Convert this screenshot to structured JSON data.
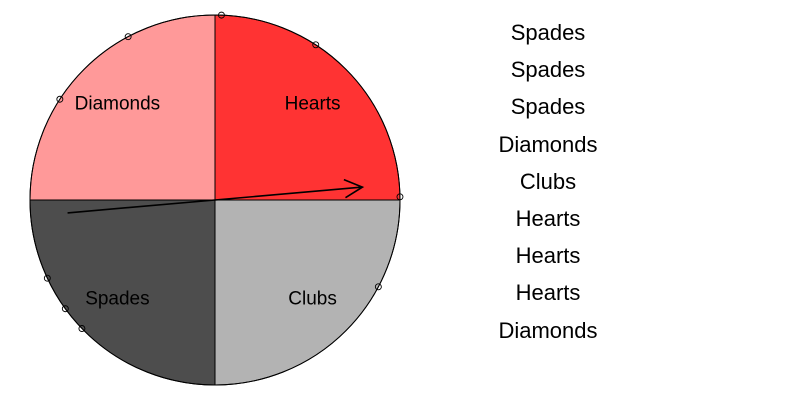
{
  "spinner": {
    "wedges": [
      {
        "label": "Hearts",
        "color": "#ff3333",
        "start_deg": 0,
        "end_deg": 90
      },
      {
        "label": "Diamonds",
        "color": "#ff9999",
        "start_deg": 90,
        "end_deg": 180
      },
      {
        "label": "Spades",
        "color": "#4d4d4d",
        "start_deg": 180,
        "end_deg": 270
      },
      {
        "label": "Clubs",
        "color": "#b3b3b3",
        "start_deg": 270,
        "end_deg": 360
      }
    ],
    "arrow_angle_deg": 5,
    "landing_marks_deg": [
      88,
      57,
      1,
      -28,
      205,
      216,
      224,
      118,
      147
    ]
  },
  "draws": [
    "Spades",
    "Spades",
    "Spades",
    "Diamonds",
    "Clubs",
    "Hearts",
    "Hearts",
    "Hearts",
    "Diamonds"
  ]
}
